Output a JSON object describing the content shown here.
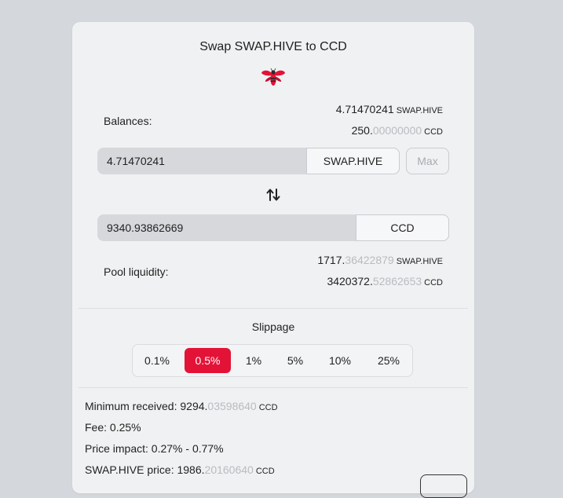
{
  "title": "Swap SWAP.HIVE to CCD",
  "logo": {
    "icon": "hive-bee-logo",
    "color": "#e31337"
  },
  "balances": {
    "label": "Balances:",
    "hive": {
      "int": "4.71470241",
      "dec": "",
      "unit": "SWAP.HIVE"
    },
    "ccd": {
      "int": "250.",
      "dec": "00000000",
      "unit": "CCD"
    }
  },
  "from_input": {
    "value": "4.71470241",
    "token": "SWAP.HIVE",
    "max_label": "Max"
  },
  "swap_icon": "swap-vertical-arrows-icon",
  "to_input": {
    "value": "9340.93862669",
    "token": "CCD"
  },
  "pool": {
    "label": "Pool liquidity:",
    "hive": {
      "int": "1717.",
      "dec": "36422879",
      "unit": "SWAP.HIVE"
    },
    "ccd": {
      "int": "3420372.",
      "dec": "52862653",
      "unit": "CCD"
    }
  },
  "slippage": {
    "title": "Slippage",
    "options": [
      "0.1%",
      "0.5%",
      "1%",
      "5%",
      "10%",
      "25%"
    ],
    "selected": "0.5%"
  },
  "details": {
    "min_received": {
      "label": "Minimum received: ",
      "int": "9294.",
      "dec": "03598640",
      "unit": "CCD"
    },
    "fee": "Fee: 0.25%",
    "price_impact": "Price impact: 0.27% - 0.77%",
    "price": {
      "label": "SWAP.HIVE price: ",
      "int": "1986.",
      "dec": "20160640",
      "unit": "CCD"
    }
  },
  "colors": {
    "accent": "#e31337",
    "dim_text": "#b8bcc1"
  }
}
